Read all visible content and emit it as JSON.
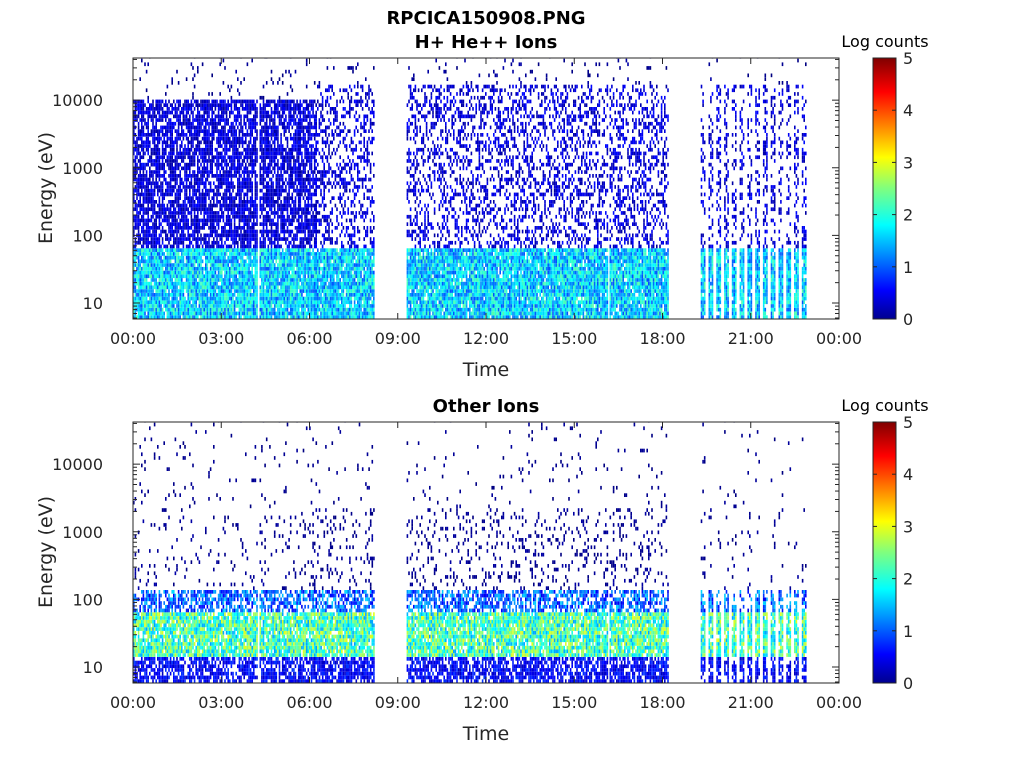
{
  "figure_title": "RPCICA150908.PNG",
  "colors": {
    "axis": "#262626",
    "data_low": "#00008f",
    "data_high": "#800000",
    "colormap": "jet"
  },
  "chart_data": [
    {
      "type": "heatmap",
      "title": "H+ He++ Ions",
      "xlabel": "Time",
      "ylabel": "Energy (eV)",
      "yscale": "log",
      "ylim": [
        5.8,
        42000
      ],
      "xlim_hours": [
        0,
        24
      ],
      "x_tick_labels": [
        "00:00",
        "03:00",
        "06:00",
        "09:00",
        "12:00",
        "15:00",
        "18:00",
        "21:00",
        "00:00"
      ],
      "y_tick_values": [
        10,
        100,
        1000,
        10000
      ],
      "y_tick_labels": [
        "10",
        "100",
        "1000",
        "10000"
      ],
      "colorbar": {
        "label": "Log counts",
        "range": [
          0,
          5
        ],
        "tick_labels": [
          "0",
          "1",
          "2",
          "3",
          "4",
          "5"
        ]
      },
      "data_intervals_hours": [
        [
          0.0,
          4.2
        ],
        [
          4.3,
          6.2
        ],
        [
          6.2,
          8.2
        ],
        [
          9.3,
          16.1
        ],
        [
          16.2,
          18.2
        ]
      ],
      "burst_segment": {
        "start_hours": 19.3,
        "end_hours": 23.0,
        "stripes": 14
      },
      "grid": false
    },
    {
      "type": "heatmap",
      "title": "Other Ions",
      "xlabel": "Time",
      "ylabel": "Energy (eV)",
      "yscale": "log",
      "ylim": [
        5.8,
        42000
      ],
      "xlim_hours": [
        0,
        24
      ],
      "x_tick_labels": [
        "00:00",
        "03:00",
        "06:00",
        "09:00",
        "12:00",
        "15:00",
        "18:00",
        "21:00",
        "00:00"
      ],
      "y_tick_values": [
        10,
        100,
        1000,
        10000
      ],
      "y_tick_labels": [
        "10",
        "100",
        "1000",
        "10000"
      ],
      "colorbar": {
        "label": "Log counts",
        "range": [
          0,
          5
        ],
        "tick_labels": [
          "0",
          "1",
          "2",
          "3",
          "4",
          "5"
        ]
      },
      "data_intervals_hours": [
        [
          0.0,
          4.2
        ],
        [
          4.3,
          8.2
        ],
        [
          9.3,
          16.1
        ],
        [
          16.2,
          18.2
        ]
      ],
      "burst_segment": {
        "start_hours": 19.3,
        "end_hours": 23.0,
        "stripes": 14
      },
      "grid": false
    }
  ]
}
